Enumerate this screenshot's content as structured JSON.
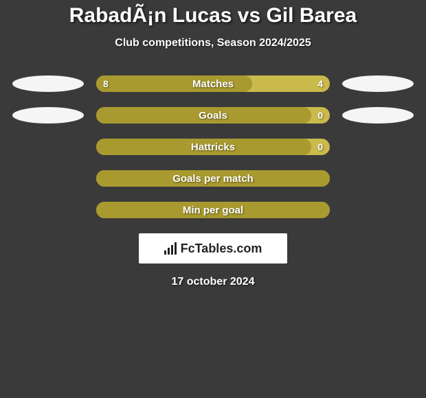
{
  "title": "RabadÃ¡n Lucas vs Gil Barea",
  "subtitle": "Club competitions, Season 2024/2025",
  "date": "17 october 2024",
  "logo_text": "FcTables.com",
  "colors": {
    "background": "#3a3a3a",
    "bar_left": "#a89a2f",
    "bar_right": "#c9ba4b",
    "bubble_left": "#f5f5f5",
    "bubble_right": "#f5f5f5",
    "text": "#ffffff"
  },
  "rows": [
    {
      "label": "Matches",
      "left_value": "8",
      "right_value": "4",
      "left_pct": 66.7,
      "show_left_value": true,
      "show_right_value": true,
      "show_left_bubble": true,
      "show_right_bubble": true
    },
    {
      "label": "Goals",
      "left_value": "",
      "right_value": "0",
      "left_pct": 92,
      "show_left_value": false,
      "show_right_value": true,
      "show_left_bubble": true,
      "show_right_bubble": true
    },
    {
      "label": "Hattricks",
      "left_value": "",
      "right_value": "0",
      "left_pct": 92,
      "show_left_value": false,
      "show_right_value": true,
      "show_left_bubble": false,
      "show_right_bubble": false
    },
    {
      "label": "Goals per match",
      "left_value": "",
      "right_value": "",
      "left_pct": 100,
      "show_left_value": false,
      "show_right_value": false,
      "show_left_bubble": false,
      "show_right_bubble": false
    },
    {
      "label": "Min per goal",
      "left_value": "",
      "right_value": "",
      "left_pct": 100,
      "show_left_value": false,
      "show_right_value": false,
      "show_left_bubble": false,
      "show_right_bubble": false
    }
  ]
}
